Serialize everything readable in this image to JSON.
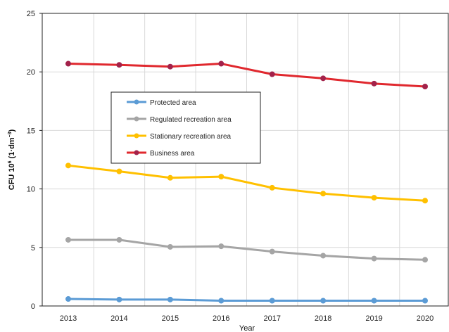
{
  "chart_data": {
    "type": "line",
    "title": "",
    "xlabel": "Year",
    "ylabel_main": "CFU 10",
    "ylabel_sup": "6",
    "ylabel_rest": " (1·dm",
    "ylabel_sup2": "−3",
    "ylabel_end": ")",
    "ylim": [
      0,
      25
    ],
    "yticks": [
      "0",
      "5",
      "10",
      "15",
      "20",
      "25"
    ],
    "x": [
      "2013",
      "2014",
      "2015",
      "2016",
      "2017",
      "2018",
      "2019",
      "2020"
    ],
    "grid": true,
    "legend_position": "upper-left inside plot",
    "series": [
      {
        "name": "Protected area",
        "color": "#5b9bd5",
        "values": [
          0.6,
          0.55,
          0.55,
          0.45,
          0.45,
          0.45,
          0.45,
          0.45
        ]
      },
      {
        "name": "Regulated recreation area",
        "color": "#a5a5a5",
        "values": [
          5.65,
          5.65,
          5.05,
          5.1,
          4.65,
          4.3,
          4.05,
          3.95
        ]
      },
      {
        "name": "Stationary recreation area",
        "color": "#ffc000",
        "values": [
          12.0,
          11.5,
          10.95,
          11.05,
          10.1,
          9.6,
          9.25,
          9.0
        ]
      },
      {
        "name": "Business area",
        "color": "#e0282e",
        "marker_color": "#a3224a",
        "values": [
          20.7,
          20.6,
          20.45,
          20.7,
          19.8,
          19.45,
          19.0,
          18.75
        ]
      }
    ]
  }
}
